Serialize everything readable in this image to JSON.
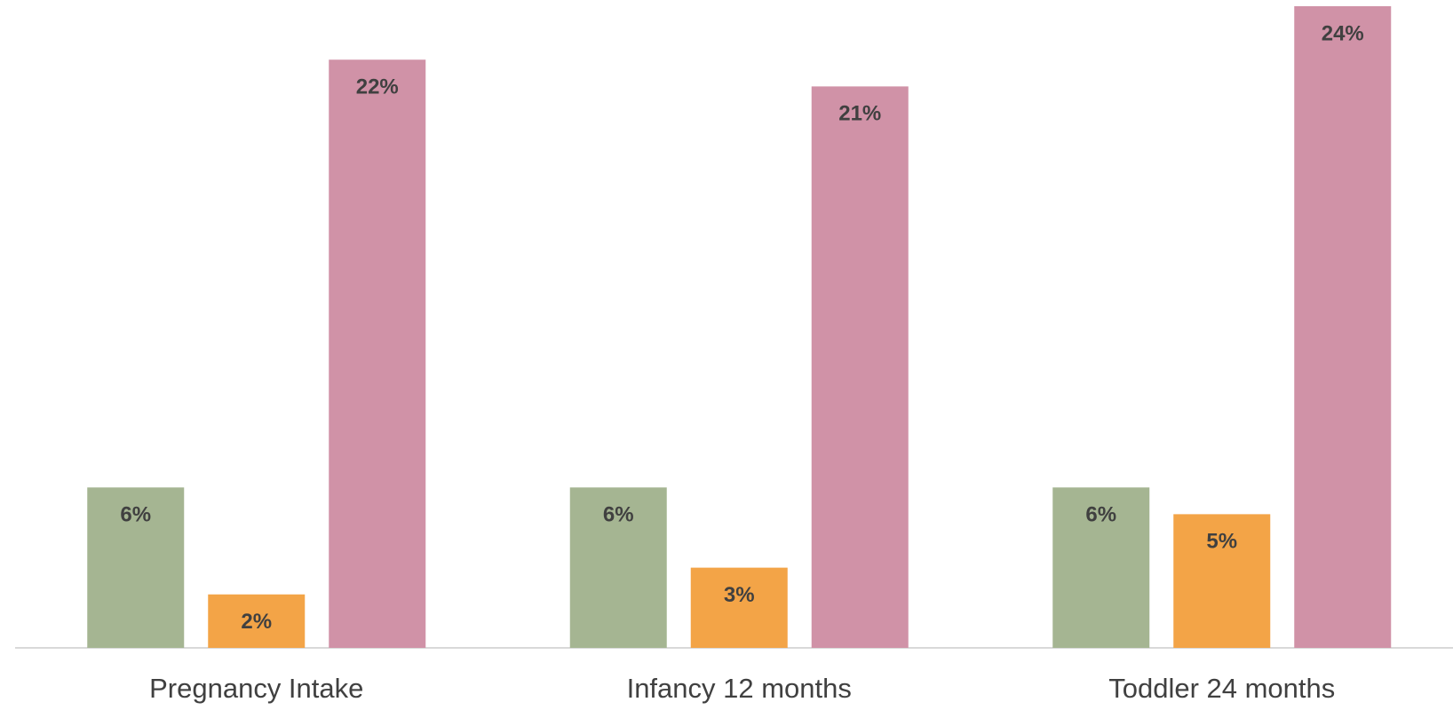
{
  "chart_data": {
    "type": "bar",
    "categories": [
      "Pregnancy Intake",
      "Infancy 12 months",
      "Toddler 24 months"
    ],
    "series": [
      {
        "color": "#a5b592",
        "values": [
          6,
          6,
          6
        ],
        "value_labels": [
          "6%",
          "6%",
          "6%"
        ]
      },
      {
        "color": "#f3a447",
        "values": [
          2,
          3,
          5
        ],
        "value_labels": [
          "2%",
          "3%",
          "5%"
        ]
      },
      {
        "color": "#d092a7",
        "values": [
          22,
          21,
          24
        ],
        "value_labels": [
          "22%",
          "21%",
          "24%"
        ]
      }
    ],
    "ylim": [
      0,
      24
    ]
  }
}
